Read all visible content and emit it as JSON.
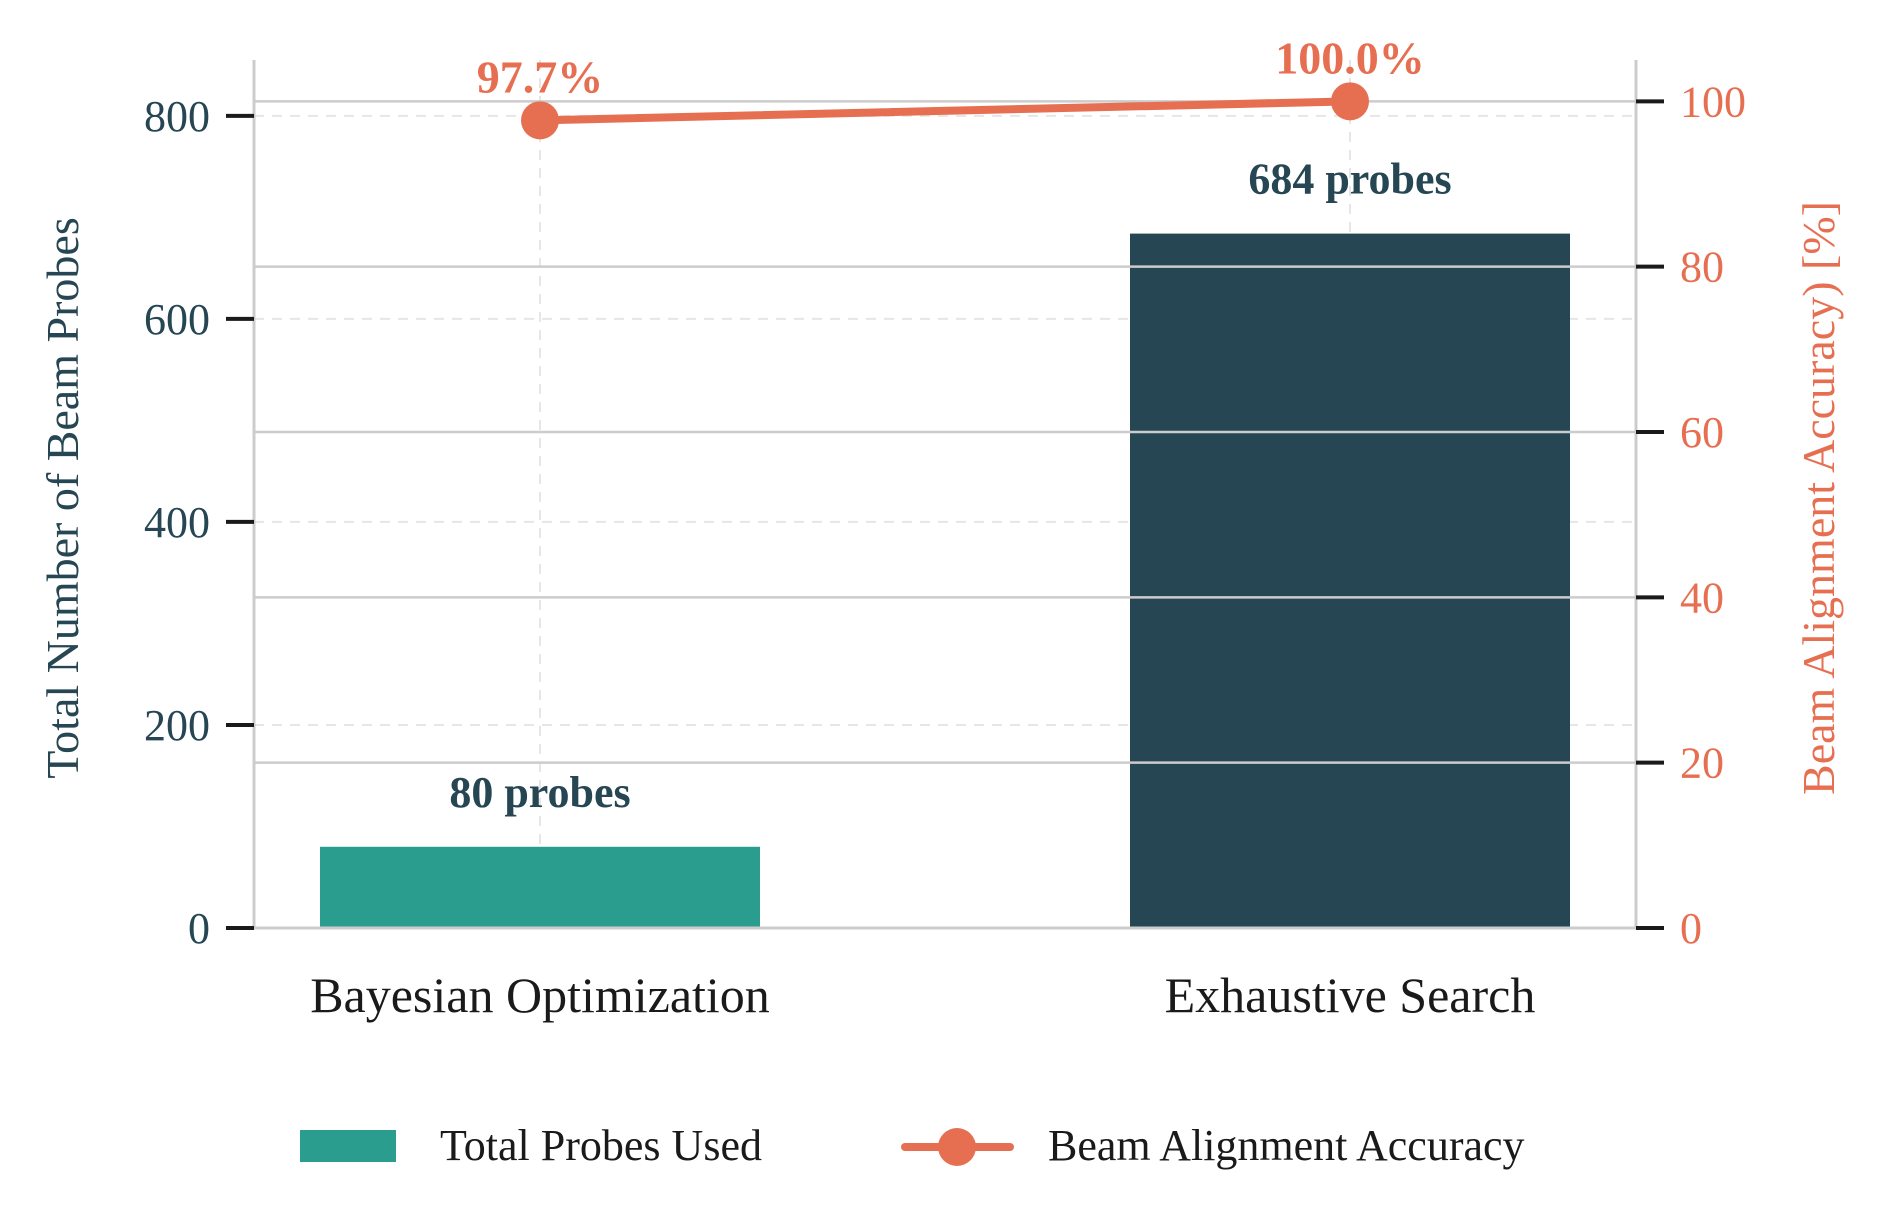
{
  "chart_data": {
    "type": "bar",
    "categories": [
      "Bayesian Optimization",
      "Exhaustive Search"
    ],
    "series": [
      {
        "name": "Total Probes Used",
        "axis": "left",
        "values": [
          80,
          684
        ],
        "value_labels": [
          "80 probes",
          "684 probes"
        ]
      },
      {
        "name": "Beam Alignment Accuracy",
        "type": "line",
        "axis": "right",
        "values": [
          97.7,
          100.0
        ],
        "value_labels": [
          "97.7%",
          "100.0%"
        ]
      }
    ],
    "ylabel": "Total Number of Beam Probes",
    "ylabel_right": "Beam Alignment Accuracy) [%]",
    "ylim": [
      0,
      855
    ],
    "ylim_right": [
      0,
      105
    ],
    "yticks": [
      "0",
      "200",
      "400",
      "600",
      "800"
    ],
    "yticks_right": [
      "0",
      "20",
      "40",
      "60",
      "80",
      "100"
    ],
    "grid": true,
    "legend_position": "bottom-center",
    "colors": {
      "bar_bayesian": "#2a9d8f",
      "bar_exhaustive": "#264653",
      "line": "#e76f51",
      "left_axis_text": "#264653",
      "right_axis_text": "#e76f51"
    }
  }
}
